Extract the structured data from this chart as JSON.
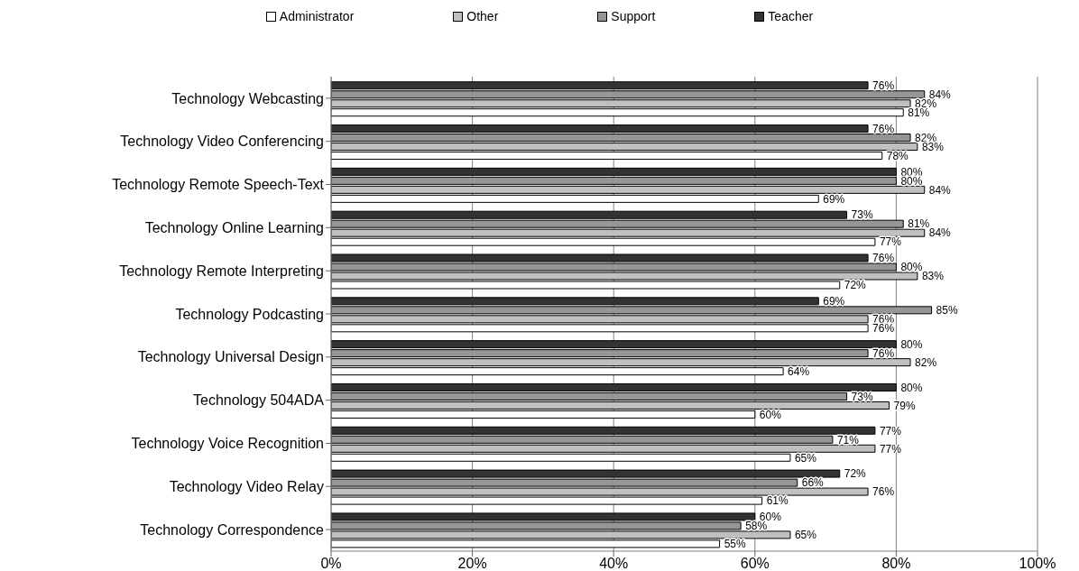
{
  "chart_data": {
    "type": "bar",
    "orientation": "horizontal",
    "categories": [
      "Technology Webcasting",
      "Technology Video Conferencing",
      "Technology Remote Speech-Text",
      "Technology Online Learning",
      "Technology Remote Interpreting",
      "Technology Podcasting",
      "Technology Universal Design",
      "Technology 504ADA",
      "Technology Voice Recognition",
      "Technology Video Relay",
      "Technology Correspondence"
    ],
    "series": [
      {
        "name": "Administrator",
        "color": "#ffffff",
        "values": [
          81,
          78,
          69,
          77,
          72,
          76,
          64,
          60,
          65,
          61,
          55
        ],
        "value_labels": [
          "81%",
          "78%",
          "69%",
          "77%",
          "72%",
          "76%",
          "64%",
          "60%",
          "65%",
          "61%",
          "55%"
        ]
      },
      {
        "name": "Other",
        "color": "#c0c0c0",
        "values": [
          82,
          83,
          84,
          84,
          83,
          76,
          82,
          79,
          77,
          76,
          65
        ],
        "value_labels": [
          "82%",
          "83%",
          "84%",
          "84%",
          "83%",
          "76%",
          "82%",
          "79%",
          "77%",
          "76%",
          "65%"
        ]
      },
      {
        "name": "Support",
        "color": "#969696",
        "values": [
          84,
          82,
          80,
          81,
          80,
          85,
          76,
          73,
          71,
          66,
          58
        ],
        "value_labels": [
          "84%",
          "82%",
          "80%",
          "81%",
          "80%",
          "85%",
          "76%",
          "73%",
          "71%",
          "66%",
          "58%"
        ]
      },
      {
        "name": "Teacher",
        "color": "#333333",
        "values": [
          76,
          76,
          80,
          73,
          76,
          69,
          80,
          80,
          77,
          72,
          60
        ],
        "value_labels": [
          "76%",
          "76%",
          "80%",
          "73%",
          "76%",
          "69%",
          "80%",
          "80%",
          "77%",
          "72%",
          "60%"
        ]
      }
    ],
    "xlim": [
      0,
      100
    ],
    "xticks": [
      {
        "value": 0,
        "label": "0%"
      },
      {
        "value": 20,
        "label": "20%"
      },
      {
        "value": 40,
        "label": "40%"
      },
      {
        "value": 60,
        "label": "60%"
      },
      {
        "value": 80,
        "label": "80%"
      },
      {
        "value": 100,
        "label": "100%"
      }
    ],
    "grid": "x",
    "legend": "top"
  }
}
